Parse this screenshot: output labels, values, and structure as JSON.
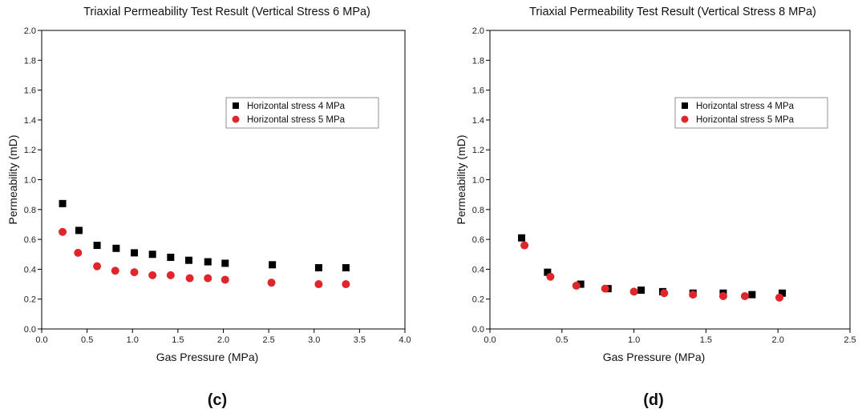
{
  "chart_data": [
    {
      "type": "scatter",
      "title": "Triaxial Permeability Test Result (Vertical Stress 6 MPa)",
      "xlabel": "Gas Pressure (MPa)",
      "ylabel": "Permeability (mD)",
      "xlim": [
        0.0,
        4.0
      ],
      "ylim": [
        0.0,
        2.0
      ],
      "xticks": [
        "0.0",
        "0.5",
        "1.0",
        "1.5",
        "2.0",
        "2.5",
        "3.0",
        "3.5",
        "4.0"
      ],
      "yticks": [
        "0.0",
        "0.2",
        "0.4",
        "0.6",
        "0.8",
        "1.0",
        "1.2",
        "1.4",
        "1.6",
        "1.8",
        "2.0"
      ],
      "grid": false,
      "legend_position": "right",
      "caption": "(c)",
      "series": [
        {
          "name": "Horizontal stress 4 MPa",
          "marker": "square",
          "color": "#000000",
          "x": [
            0.23,
            0.41,
            0.61,
            0.82,
            1.02,
            1.22,
            1.42,
            1.62,
            1.83,
            2.02,
            2.54,
            3.05,
            3.35
          ],
          "y": [
            0.84,
            0.66,
            0.56,
            0.54,
            0.51,
            0.5,
            0.48,
            0.46,
            0.45,
            0.44,
            0.43,
            0.41,
            0.41
          ]
        },
        {
          "name": "Horizontal stress 5 MPa",
          "marker": "circle",
          "color": "#e0262b",
          "x": [
            0.23,
            0.4,
            0.61,
            0.81,
            1.02,
            1.22,
            1.42,
            1.63,
            1.83,
            2.02,
            2.53,
            3.05,
            3.35
          ],
          "y": [
            0.65,
            0.51,
            0.42,
            0.39,
            0.38,
            0.36,
            0.36,
            0.34,
            0.34,
            0.33,
            0.31,
            0.3,
            0.3
          ]
        }
      ]
    },
    {
      "type": "scatter",
      "title": "Triaxial Permeability Test Result (Vertical Stress 8 MPa)",
      "xlabel": "Gas Pressure (MPa)",
      "ylabel": "Permeability (mD)",
      "xlim": [
        0.0,
        2.5
      ],
      "ylim": [
        0.0,
        2.0
      ],
      "xticks": [
        "0.0",
        "0.5",
        "1.0",
        "1.5",
        "2.0",
        "2.5"
      ],
      "yticks": [
        "0.0",
        "0.2",
        "0.4",
        "0.6",
        "0.8",
        "1.0",
        "1.2",
        "1.4",
        "1.6",
        "1.8",
        "2.0"
      ],
      "grid": false,
      "legend_position": "right",
      "caption": "(d)",
      "series": [
        {
          "name": "Horizontal stress 4 MPa",
          "marker": "square",
          "color": "#000000",
          "x": [
            0.22,
            0.4,
            0.63,
            0.82,
            1.05,
            1.2,
            1.41,
            1.62,
            1.82,
            2.03
          ],
          "y": [
            0.61,
            0.38,
            0.3,
            0.27,
            0.26,
            0.25,
            0.24,
            0.24,
            0.23,
            0.24
          ]
        },
        {
          "name": "Horizontal stress 5 MPa",
          "marker": "circle",
          "color": "#e0262b",
          "x": [
            0.24,
            0.42,
            0.6,
            0.8,
            1.0,
            1.21,
            1.41,
            1.62,
            1.77,
            2.01
          ],
          "y": [
            0.56,
            0.35,
            0.29,
            0.27,
            0.25,
            0.24,
            0.23,
            0.22,
            0.22,
            0.21
          ]
        }
      ]
    }
  ]
}
